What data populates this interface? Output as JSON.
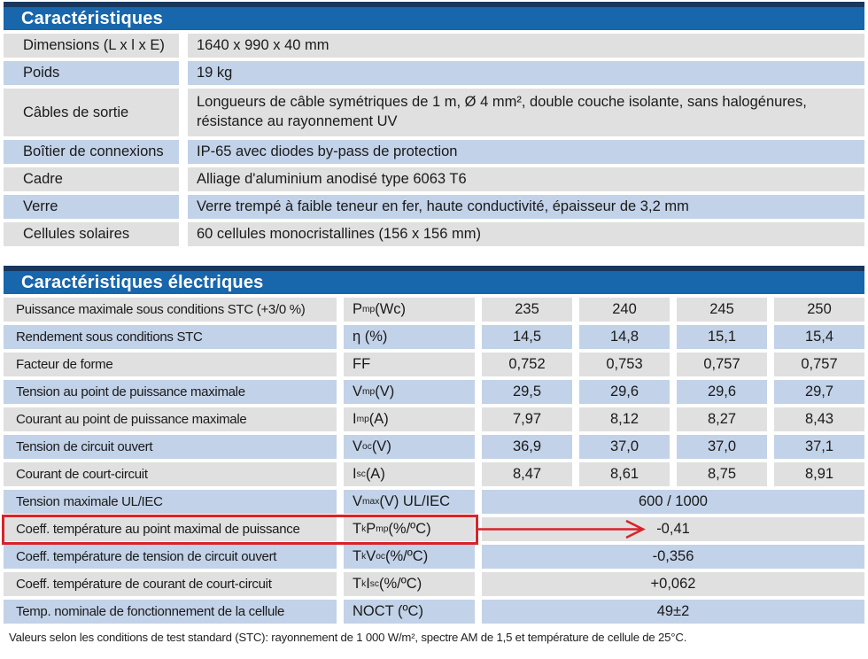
{
  "colors": {
    "header_blue": "#1866AC",
    "header_navy": "#17375E",
    "row_gray": "#E0E0E0",
    "row_blue": "#C2D2E8",
    "highlight_red": "#D8232A"
  },
  "characteristics": {
    "title": "Caractéristiques",
    "rows": [
      {
        "label": "Dimensions (L x l x E)",
        "value": "1640 x 990 x 40 mm"
      },
      {
        "label": "Poids",
        "value": "19 kg"
      },
      {
        "label": "Câbles de sortie",
        "value": "Longueurs de câble symétriques de 1 m, Ø 4 mm², double couche isolante, sans halogénures, résistance au rayonnement UV"
      },
      {
        "label": "Boîtier de connexions",
        "value": "IP-65 avec diodes by-pass de protection"
      },
      {
        "label": "Cadre",
        "value": "Alliage d'aluminium anodisé type 6063 T6"
      },
      {
        "label": "Verre",
        "value": "Verre trempé à faible teneur en fer, haute conductivité, épaisseur de 3,2 mm"
      },
      {
        "label": "Cellules solaires",
        "value": "60 cellules monocristallines (156 x 156 mm)"
      }
    ]
  },
  "electrical": {
    "title": "Caractéristiques électriques",
    "power_classes": [
      "235",
      "240",
      "245",
      "250"
    ],
    "rows": [
      {
        "label": "Puissance maximale sous conditions STC (+3/0 %)",
        "symbol": "P_{mp} (Wc)",
        "values": [
          "235",
          "240",
          "245",
          "250"
        ]
      },
      {
        "label": "Rendement sous conditions STC",
        "symbol": "η (%)",
        "values": [
          "14,5",
          "14,8",
          "15,1",
          "15,4"
        ]
      },
      {
        "label": "Facteur de forme",
        "symbol": "FF",
        "values": [
          "0,752",
          "0,753",
          "0,757",
          "0,757"
        ]
      },
      {
        "label": "Tension au point de puissance maximale",
        "symbol": "V_{mp} (V)",
        "values": [
          "29,5",
          "29,6",
          "29,6",
          "29,7"
        ]
      },
      {
        "label": "Courant au point de puissance maximale",
        "symbol": "I_{mp} (A)",
        "values": [
          "7,97",
          "8,12",
          "8,27",
          "8,43"
        ]
      },
      {
        "label": "Tension de circuit ouvert",
        "symbol": "V_{oc} (V)",
        "values": [
          "36,9",
          "37,0",
          "37,0",
          "37,1"
        ]
      },
      {
        "label": "Courant de court-circuit",
        "symbol": "I_{sc} (A)",
        "values": [
          "8,47",
          "8,61",
          "8,75",
          "8,91"
        ]
      },
      {
        "label": "Tension maximale UL/IEC",
        "symbol": "V_{max} (V) UL/IEC",
        "span_value": "600 / 1000"
      },
      {
        "label": "Coeff. température au point maximal de puissance",
        "symbol": "T_{k}P_{mp} (%/ºC)",
        "span_value": "-0,41",
        "highlighted": true
      },
      {
        "label": "Coeff. température de tension de circuit ouvert",
        "symbol": "T_{k}V_{oc} (%/ºC)",
        "span_value": "-0,356"
      },
      {
        "label": "Coeff. température de courant de court-circuit",
        "symbol": "T_{k}I_{sc} (%/ºC)",
        "span_value": "+0,062"
      },
      {
        "label": "Temp. nominale de fonctionnement de la cellule",
        "symbol": "NOCT (ºC)",
        "span_value": "49±2"
      }
    ]
  },
  "footnote": "Valeurs selon les conditions de test standard (STC): rayonnement de 1 000 W/m², spectre AM de 1,5 et température de cellule de 25°C."
}
